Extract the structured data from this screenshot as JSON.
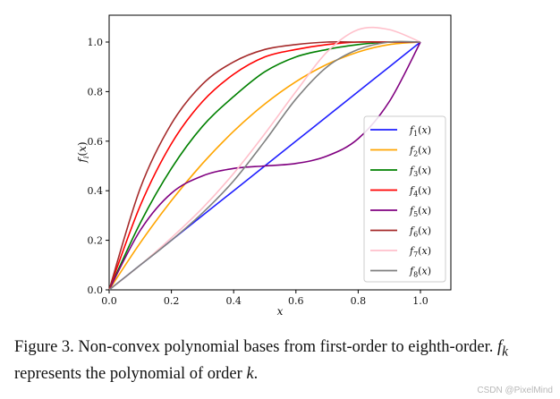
{
  "chart_data": {
    "type": "line",
    "xlabel": "x",
    "ylabel": "f_i(x)",
    "xlim": [
      0.0,
      1.0
    ],
    "ylim": [
      0.0,
      1.08
    ],
    "xticks": [
      "0.0",
      "0.2",
      "0.4",
      "0.6",
      "0.8",
      "1.0"
    ],
    "yticks": [
      "0.0",
      "0.2",
      "0.4",
      "0.6",
      "0.8",
      "1.0"
    ],
    "legend_position": "center-right",
    "grid": false,
    "x": [
      0,
      0.1,
      0.2,
      0.3,
      0.4,
      0.5,
      0.6,
      0.7,
      0.8,
      0.9,
      1.0
    ],
    "series": [
      {
        "name": "f1(x)",
        "sub": "1",
        "color": "#1f1fff",
        "values": [
          0,
          0.1,
          0.2,
          0.3,
          0.4,
          0.5,
          0.6,
          0.7,
          0.8,
          0.9,
          1.0
        ]
      },
      {
        "name": "f2(x)",
        "sub": "2",
        "color": "#ffa500",
        "values": [
          0,
          0.19,
          0.36,
          0.51,
          0.64,
          0.75,
          0.84,
          0.91,
          0.96,
          0.99,
          1.0
        ]
      },
      {
        "name": "f3(x)",
        "sub": "3",
        "color": "#008000",
        "values": [
          0,
          0.27,
          0.49,
          0.66,
          0.78,
          0.88,
          0.94,
          0.97,
          0.99,
          1.0,
          1.0
        ]
      },
      {
        "name": "f4(x)",
        "sub": "4",
        "color": "#ff0000",
        "values": [
          0,
          0.34,
          0.59,
          0.76,
          0.87,
          0.94,
          0.97,
          0.99,
          1.0,
          1.0,
          1.0
        ]
      },
      {
        "name": "f5(x)",
        "sub": "5",
        "color": "#800080",
        "values": [
          0,
          0.24,
          0.39,
          0.46,
          0.49,
          0.5,
          0.51,
          0.54,
          0.61,
          0.76,
          1.0
        ]
      },
      {
        "name": "f6(x)",
        "sub": "6",
        "color": "#a52a2a",
        "values": [
          0,
          0.41,
          0.67,
          0.83,
          0.92,
          0.97,
          0.99,
          1.0,
          1.0,
          1.0,
          1.0
        ]
      },
      {
        "name": "f7(x)",
        "sub": "7",
        "color": "#ffc0cb",
        "values": [
          0,
          0.1,
          0.21,
          0.33,
          0.47,
          0.63,
          0.8,
          0.96,
          1.05,
          1.05,
          1.0
        ]
      },
      {
        "name": "f8(x)",
        "sub": "8",
        "color": "#808080",
        "values": [
          0,
          0.1,
          0.2,
          0.31,
          0.44,
          0.6,
          0.77,
          0.9,
          0.97,
          1.0,
          1.0
        ]
      }
    ]
  },
  "caption": {
    "prefix": "Figure 3. Non-convex polynomial bases from first-order to eighth-order. ",
    "f_symbol": "f",
    "f_sub": "k",
    "middle": " represents the polynomial of order ",
    "k_symbol": "k",
    "suffix": "."
  },
  "watermark": "CSDN @PixelMind"
}
